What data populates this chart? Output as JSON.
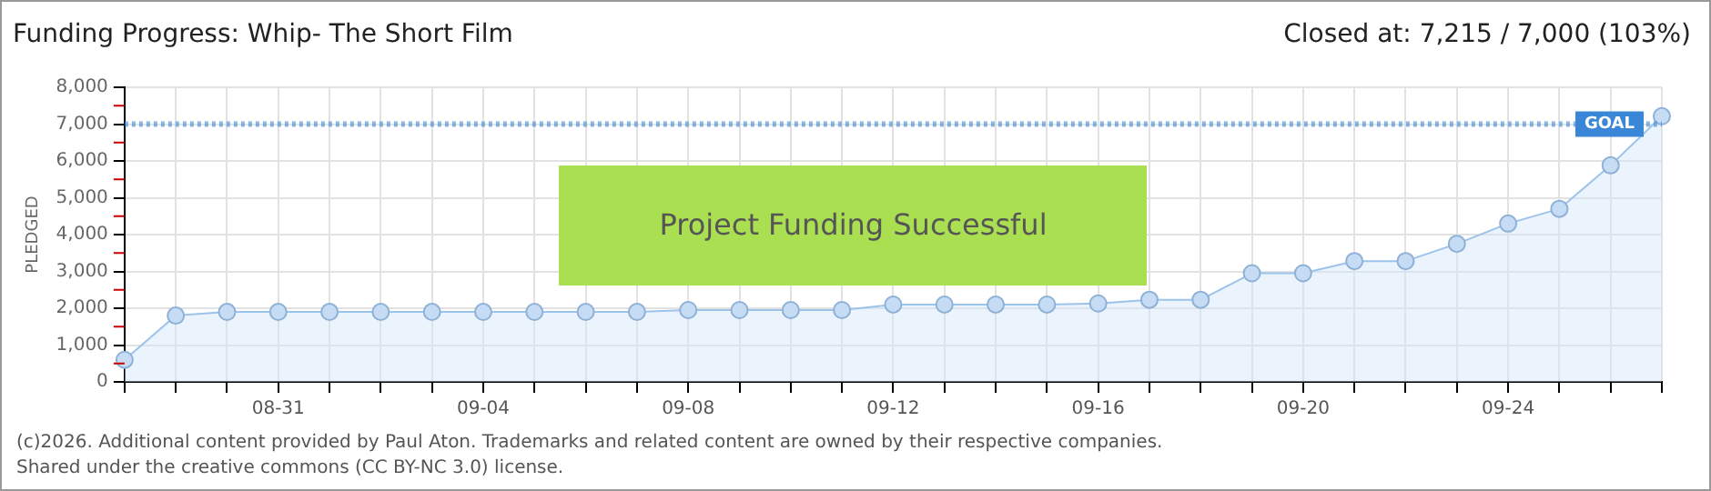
{
  "chart_data": {
    "type": "area",
    "title": "Funding Progress: Whip- The Short Film",
    "subtitle": "Closed at: 7,215 / 7,000 (103%)",
    "ylabel": "PLEDGED",
    "categories": [
      null,
      null,
      null,
      "08-31",
      null,
      null,
      null,
      "09-04",
      null,
      null,
      null,
      "09-08",
      null,
      null,
      null,
      "09-12",
      null,
      null,
      null,
      "09-16",
      null,
      null,
      null,
      "09-20",
      null,
      null,
      null,
      "09-24",
      null,
      null,
      null
    ],
    "series": [
      {
        "color": "#9cc3ea",
        "values": [
          600,
          1800,
          1900,
          1900,
          1900,
          1900,
          1900,
          1900,
          1900,
          1900,
          1900,
          1950,
          1950,
          1950,
          1950,
          2100,
          2100,
          2100,
          2100,
          2130,
          2230,
          2230,
          2950,
          2950,
          3280,
          3280,
          3750,
          4300,
          4700,
          5880,
          7215
        ]
      }
    ],
    "ylim": [
      0,
      8000
    ],
    "yticks": [
      0,
      {
        "value": 1000,
        "label": "1,000"
      },
      {
        "value": 2000,
        "label": "2,000"
      },
      {
        "value": 3000,
        "label": "3,000"
      },
      {
        "value": 4000,
        "label": "4,000"
      },
      {
        "value": 5000,
        "label": "5,000"
      },
      {
        "value": 6000,
        "label": "6,000"
      },
      {
        "value": 7000,
        "label": "7,000"
      },
      {
        "value": 8000,
        "label": "8,000"
      }
    ],
    "grid": true,
    "marker": "circle",
    "line_style": "solid",
    "legend": false,
    "ref_lines": [
      {
        "axis": "y",
        "value": 7000,
        "label": "GOAL",
        "color": "#3a87d8",
        "line_style": "dotted"
      }
    ],
    "annotations": [
      "Project Funding Successful",
      "(c)2026. Additional content provided by Paul Aton. Trademarks and related content are owned by their respective companies.",
      "Shared under the creative commons (CC BY-NC 3.0) license."
    ]
  }
}
